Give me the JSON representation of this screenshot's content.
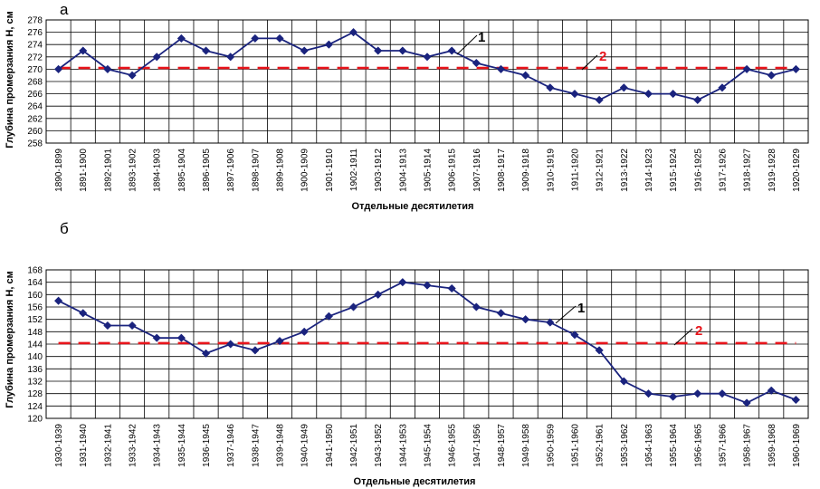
{
  "chart_data": [
    {
      "panel": "а",
      "type": "line",
      "ylabel": "Глубина промерзания Н, см",
      "xlabel": "Отдельные десятилетия",
      "ylim": [
        258,
        278
      ],
      "ytick_step": 2,
      "grid": true,
      "categories": [
        "1890-1899",
        "1891-1900",
        "1892-1901",
        "1893-1902",
        "1894-1903",
        "1895-1904",
        "1896-1905",
        "1897-1906",
        "1898-1907",
        "1899-1908",
        "1900-1909",
        "1901-1910",
        "1902-1911",
        "1903-1912",
        "1904-1913",
        "1905-1914",
        "1906-1915",
        "1907-1916",
        "1908-1917",
        "1909-1918",
        "1910-1919",
        "1911-1920",
        "1912-1921",
        "1913-1922",
        "1914-1923",
        "1915-1924",
        "1916-1925",
        "1917-1926",
        "1918-1927",
        "1919-1928",
        "1920-1929"
      ],
      "series": [
        {
          "name": "1",
          "style": "line-markers",
          "color": "#1a237e",
          "values": [
            270,
            273,
            270,
            269,
            272,
            275,
            273,
            272,
            275,
            275,
            273,
            274,
            276,
            273,
            273,
            272,
            273,
            271,
            270,
            269,
            267,
            266,
            265,
            267,
            266,
            266,
            265,
            267,
            270,
            269,
            270
          ]
        },
        {
          "name": "2",
          "style": "dashed",
          "color": "#e8141b",
          "value": 270.2
        }
      ]
    },
    {
      "panel": "б",
      "type": "line",
      "ylabel": "Глубина промерзания Н, см",
      "xlabel": "Отдельные десятилетия",
      "ylim": [
        120,
        168
      ],
      "ytick_step": 4,
      "grid": true,
      "categories": [
        "1930-1939",
        "1931-1940",
        "1932-1941",
        "1933-1942",
        "1934-1943",
        "1935-1944",
        "1936-1945",
        "1937-1946",
        "1938-1947",
        "1939-1948",
        "1940-1949",
        "1941-1950",
        "1942-1951",
        "1943-1952",
        "1944-1953",
        "1945-1954",
        "1946-1955",
        "1947-1956",
        "1948-1957",
        "1949-1958",
        "1950-1959",
        "1951-1960",
        "1952-1961",
        "1953-1962",
        "1954-1963",
        "1955-1964",
        "1956-1965",
        "1957-1966",
        "1958-1967",
        "1959-1968",
        "1960-1969"
      ],
      "series": [
        {
          "name": "1",
          "style": "line-markers",
          "color": "#1a237e",
          "values": [
            158,
            154,
            150,
            150,
            146,
            146,
            141,
            144,
            142,
            145,
            148,
            153,
            156,
            160,
            164,
            163,
            162,
            156,
            154,
            152,
            151,
            147,
            142,
            132,
            128,
            127,
            128,
            128,
            125,
            129,
            126
          ]
        },
        {
          "name": "2",
          "style": "dashed",
          "color": "#e8141b",
          "value": 144.3
        }
      ]
    }
  ]
}
